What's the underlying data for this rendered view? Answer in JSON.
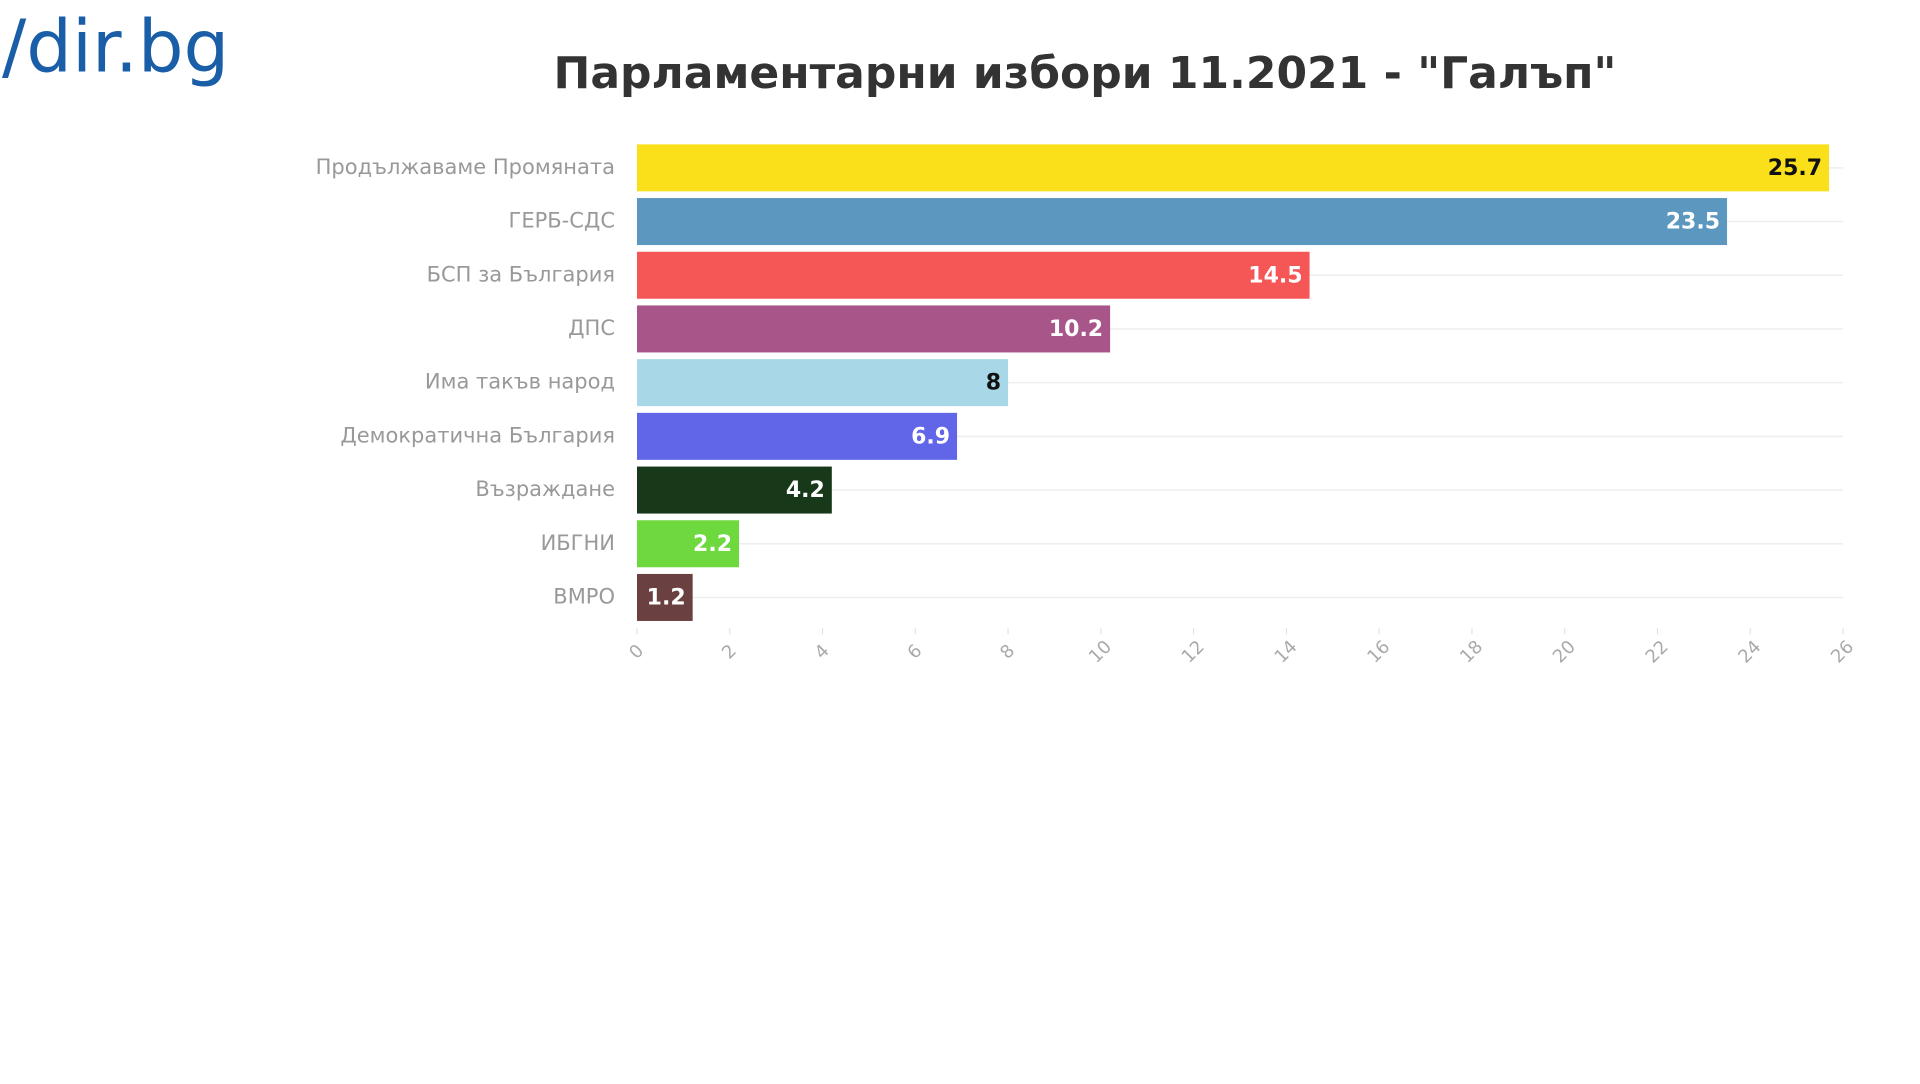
{
  "logo": "/dir.bg",
  "chart_data": {
    "type": "hbar",
    "title": "Парламентарни избори 11.2021 - \"Галъп\"",
    "categories": [
      "Продължаваме Промяната",
      "ГЕРБ-СДС",
      "БСП за България",
      "ДПС",
      "Има такъв народ",
      "Демократична България",
      "Възраждане",
      "ИБГНИ",
      "ВМРО"
    ],
    "values": [
      25.7,
      23.5,
      14.5,
      10.2,
      8,
      6.9,
      4.2,
      2.2,
      1.2
    ],
    "colors": [
      "#f9e01b",
      "#5b97bf",
      "#f55656",
      "#a8558a",
      "#a8d8e8",
      "#6165e8",
      "#17391a",
      "#6ed93f",
      "#6b4040"
    ],
    "xlim": [
      0,
      26
    ],
    "xticks": [
      0,
      2,
      4,
      6,
      8,
      10,
      12,
      14,
      16,
      18,
      20,
      22,
      24,
      26
    ]
  }
}
